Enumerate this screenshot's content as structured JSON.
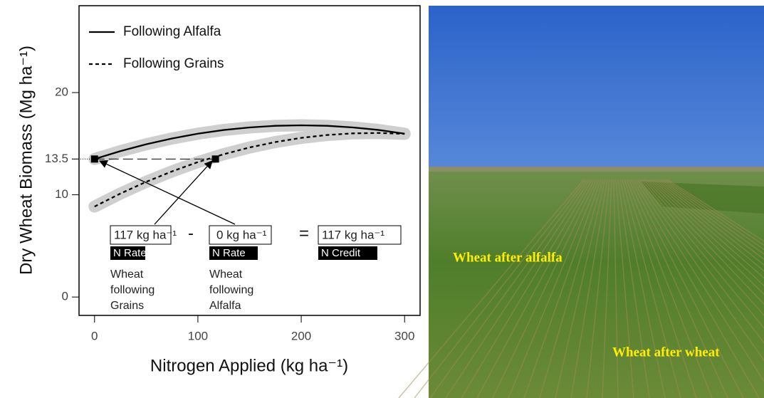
{
  "chart_data": {
    "type": "line",
    "y_label": "Dry Wheat Biomass (Mg ha⁻¹)",
    "x_label": "Nitrogen Applied (kg ha⁻¹)",
    "xlim": [
      -15,
      315
    ],
    "ylim": [
      -1.8,
      28.5
    ],
    "xticks": [
      0,
      100,
      200,
      300
    ],
    "yticks": [
      0,
      10,
      13.5,
      20
    ],
    "legend": "top-left",
    "confidence_band": true,
    "x": [
      0,
      25,
      50,
      75,
      100,
      125,
      150,
      175,
      200,
      225,
      250,
      275,
      300
    ],
    "series": [
      {
        "name": "Following Alfalfa",
        "color": "#000000",
        "dash": "solid",
        "values": [
          13.5,
          14.27,
          14.94,
          15.51,
          15.98,
          16.34,
          16.59,
          16.75,
          16.8,
          16.75,
          16.59,
          16.34,
          15.98
        ]
      },
      {
        "name": "Following Grains",
        "color": "#000000",
        "dash": "dashed",
        "values": [
          8.85,
          10.12,
          11.27,
          12.29,
          13.2,
          13.97,
          14.63,
          15.16,
          15.57,
          15.85,
          16.01,
          16.05,
          15.96
        ]
      }
    ],
    "points": {
      "x": [
        0,
        117
      ],
      "y": [
        13.5,
        13.5
      ]
    },
    "equation": {
      "terms": [
        {
          "value": "117 kg ha⁻¹",
          "tag": "N Rate",
          "note": [
            "Wheat",
            "following",
            "Grains"
          ]
        },
        {
          "value": "0 kg ha⁻¹",
          "tag": "N Rate",
          "note": [
            "Wheat",
            "following",
            "Alfalfa"
          ]
        },
        {
          "value": "117 kg ha⁻¹",
          "tag": "N Credit"
        }
      ],
      "operators": [
        "-",
        "="
      ]
    }
  },
  "photo": {
    "labels": [
      "Wheat after alfalfa",
      "Wheat after wheat"
    ]
  }
}
